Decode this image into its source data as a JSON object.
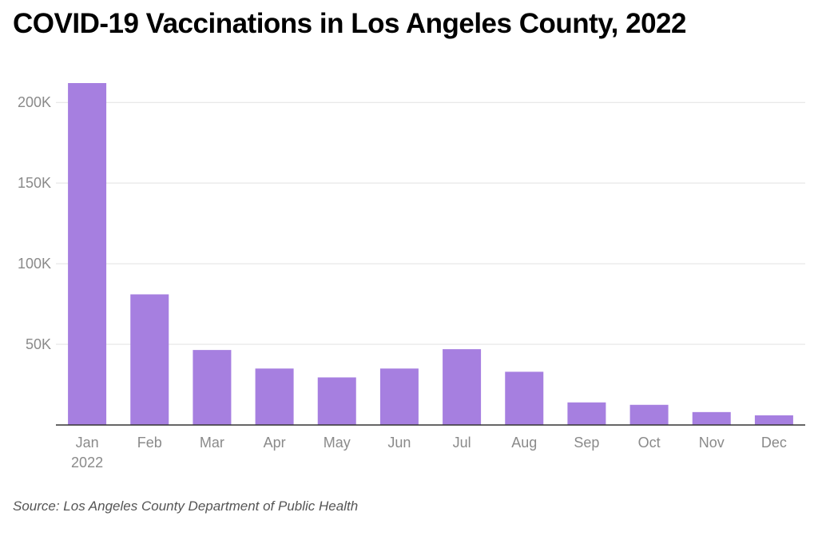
{
  "title": "COVID-19 Vaccinations in Los Angeles County, 2022",
  "source": "Source: Los Angeles County Department of Public Health",
  "colors": {
    "bar": "#a67fe0",
    "grid": "#e2e2e2",
    "axis": "#333333",
    "tick_text": "#8a8a8a"
  },
  "chart_data": {
    "type": "bar",
    "categories": [
      "Jan",
      "Feb",
      "Mar",
      "Apr",
      "May",
      "Jun",
      "Jul",
      "Aug",
      "Sep",
      "Oct",
      "Nov",
      "Dec"
    ],
    "category_sublabels": [
      "2022",
      "",
      "",
      "",
      "",
      "",
      "",
      "",
      "",
      "",
      "",
      ""
    ],
    "values": [
      212000,
      81000,
      46500,
      35000,
      29500,
      35000,
      47000,
      33000,
      14000,
      12500,
      8000,
      6000
    ],
    "y_ticks": [
      50000,
      100000,
      150000,
      200000
    ],
    "y_tick_labels": [
      "50K",
      "100K",
      "150K",
      "200K"
    ],
    "ylim": [
      0,
      212000
    ],
    "grid": true,
    "xlabel": "",
    "ylabel": ""
  }
}
